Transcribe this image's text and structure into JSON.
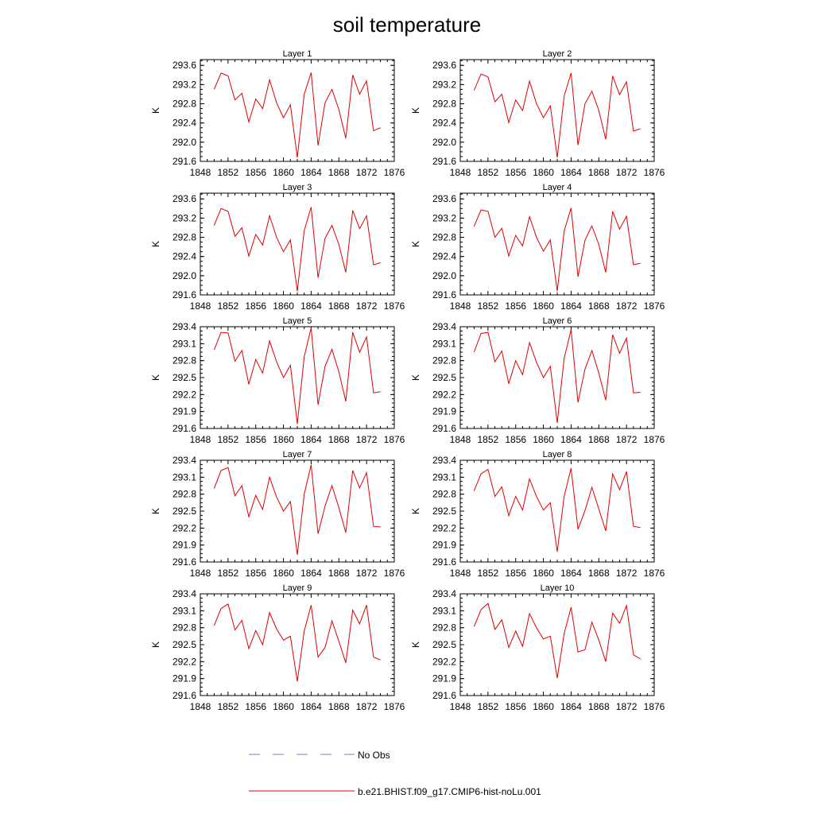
{
  "figure": {
    "title": "soil temperature",
    "legend": [
      {
        "label": "No Obs",
        "color": "#6a7fd0",
        "style": "dashed"
      },
      {
        "label": "b.e21.BHIST.f09_g17.CMIP6-hist-noLu.001",
        "color": "#e00000",
        "style": "solid"
      }
    ]
  },
  "chart_data": [
    {
      "type": "line",
      "title": "Layer 1",
      "ylabel": "K",
      "xlim": [
        1848,
        1876
      ],
      "ylim": [
        291.6,
        293.72
      ],
      "xticks": [
        "1848",
        "1852",
        "1856",
        "1860",
        "1864",
        "1868",
        "1872",
        "1876"
      ],
      "yticks": [
        "291.6",
        "292.0",
        "292.4",
        "292.8",
        "293.2",
        "293.6"
      ],
      "series": [
        {
          "color": "#e00000",
          "x": [
            1850,
            1851,
            1852,
            1853,
            1854,
            1855,
            1856,
            1857,
            1858,
            1859,
            1860,
            1861,
            1862,
            1863,
            1864,
            1865,
            1866,
            1867,
            1868,
            1869,
            1870,
            1871,
            1872,
            1873,
            1874
          ],
          "values": [
            293.1,
            293.44,
            293.38,
            292.88,
            293.02,
            292.42,
            292.9,
            292.7,
            293.3,
            292.82,
            292.51,
            292.78,
            291.68,
            293.0,
            293.45,
            291.93,
            292.82,
            293.1,
            292.68,
            292.08,
            293.4,
            293.0,
            293.28,
            292.24,
            292.3
          ]
        }
      ]
    },
    {
      "type": "line",
      "title": "Layer 2",
      "ylabel": "K",
      "xlim": [
        1848,
        1876
      ],
      "ylim": [
        291.6,
        293.72
      ],
      "xticks": [
        "1848",
        "1852",
        "1856",
        "1860",
        "1864",
        "1868",
        "1872",
        "1876"
      ],
      "yticks": [
        "291.6",
        "292.0",
        "292.4",
        "292.8",
        "293.2",
        "293.6"
      ],
      "series": [
        {
          "color": "#e00000",
          "x": [
            1850,
            1851,
            1852,
            1853,
            1854,
            1855,
            1856,
            1857,
            1858,
            1859,
            1860,
            1861,
            1862,
            1863,
            1864,
            1865,
            1866,
            1867,
            1868,
            1869,
            1870,
            1871,
            1872,
            1873,
            1874
          ],
          "values": [
            293.08,
            293.42,
            293.36,
            292.84,
            293.0,
            292.41,
            292.88,
            292.66,
            293.27,
            292.8,
            292.51,
            292.76,
            291.68,
            292.96,
            293.44,
            291.94,
            292.8,
            293.06,
            292.66,
            292.06,
            293.38,
            292.99,
            293.26,
            292.23,
            292.28
          ]
        }
      ]
    },
    {
      "type": "line",
      "title": "Layer 3",
      "ylabel": "K",
      "xlim": [
        1848,
        1876
      ],
      "ylim": [
        291.6,
        293.72
      ],
      "xticks": [
        "1848",
        "1852",
        "1856",
        "1860",
        "1864",
        "1868",
        "1872",
        "1876"
      ],
      "yticks": [
        "291.6",
        "292.0",
        "292.4",
        "292.8",
        "293.2",
        "293.6"
      ],
      "series": [
        {
          "color": "#e00000",
          "x": [
            1850,
            1851,
            1852,
            1853,
            1854,
            1855,
            1856,
            1857,
            1858,
            1859,
            1860,
            1861,
            1862,
            1863,
            1864,
            1865,
            1866,
            1867,
            1868,
            1869,
            1870,
            1871,
            1872,
            1873,
            1874
          ],
          "values": [
            293.05,
            293.4,
            293.34,
            292.82,
            293.0,
            292.41,
            292.86,
            292.64,
            293.25,
            292.8,
            292.5,
            292.75,
            291.68,
            292.94,
            293.43,
            291.96,
            292.78,
            293.05,
            292.65,
            292.07,
            293.36,
            292.98,
            293.25,
            292.23,
            292.27
          ]
        }
      ]
    },
    {
      "type": "line",
      "title": "Layer 4",
      "ylabel": "K",
      "xlim": [
        1848,
        1876
      ],
      "ylim": [
        291.6,
        293.72
      ],
      "xticks": [
        "1848",
        "1852",
        "1856",
        "1860",
        "1864",
        "1868",
        "1872",
        "1876"
      ],
      "yticks": [
        "291.6",
        "292.0",
        "292.4",
        "292.8",
        "293.2",
        "293.6"
      ],
      "series": [
        {
          "color": "#e00000",
          "x": [
            1850,
            1851,
            1852,
            1853,
            1854,
            1855,
            1856,
            1857,
            1858,
            1859,
            1860,
            1861,
            1862,
            1863,
            1864,
            1865,
            1866,
            1867,
            1868,
            1869,
            1870,
            1871,
            1872,
            1873,
            1874
          ],
          "values": [
            293.03,
            293.37,
            293.34,
            292.8,
            292.99,
            292.41,
            292.84,
            292.62,
            293.23,
            292.8,
            292.51,
            292.75,
            291.68,
            292.93,
            293.41,
            291.98,
            292.74,
            293.04,
            292.65,
            292.07,
            293.34,
            292.97,
            293.24,
            292.23,
            292.26
          ]
        }
      ]
    },
    {
      "type": "line",
      "title": "Layer 5",
      "ylabel": "K",
      "xlim": [
        1848,
        1876
      ],
      "ylim": [
        291.6,
        293.4
      ],
      "xticks": [
        "1848",
        "1852",
        "1856",
        "1860",
        "1864",
        "1868",
        "1872",
        "1876"
      ],
      "yticks": [
        "291.6",
        "291.9",
        "292.2",
        "292.5",
        "292.8",
        "293.1",
        "293.4"
      ],
      "series": [
        {
          "color": "#e00000",
          "x": [
            1850,
            1851,
            1852,
            1853,
            1854,
            1855,
            1856,
            1857,
            1858,
            1859,
            1860,
            1861,
            1862,
            1863,
            1864,
            1865,
            1866,
            1867,
            1868,
            1869,
            1870,
            1871,
            1872,
            1873,
            1874
          ],
          "values": [
            292.99,
            293.3,
            293.29,
            292.79,
            292.98,
            292.38,
            292.82,
            292.58,
            293.15,
            292.78,
            292.5,
            292.72,
            291.68,
            292.87,
            293.38,
            292.02,
            292.7,
            293.0,
            292.6,
            292.08,
            293.3,
            292.95,
            293.22,
            292.23,
            292.25
          ]
        }
      ]
    },
    {
      "type": "line",
      "title": "Layer 6",
      "ylabel": "K",
      "xlim": [
        1848,
        1876
      ],
      "ylim": [
        291.6,
        293.4
      ],
      "xticks": [
        "1848",
        "1852",
        "1856",
        "1860",
        "1864",
        "1868",
        "1872",
        "1876"
      ],
      "yticks": [
        "291.6",
        "291.9",
        "292.2",
        "292.5",
        "292.8",
        "293.1",
        "293.4"
      ],
      "series": [
        {
          "color": "#e00000",
          "x": [
            1850,
            1851,
            1852,
            1853,
            1854,
            1855,
            1856,
            1857,
            1858,
            1859,
            1860,
            1861,
            1862,
            1863,
            1864,
            1865,
            1866,
            1867,
            1868,
            1869,
            1870,
            1871,
            1872,
            1873,
            1874
          ],
          "values": [
            292.95,
            293.28,
            293.3,
            292.78,
            292.97,
            292.39,
            292.8,
            292.55,
            293.12,
            292.77,
            292.5,
            292.7,
            291.7,
            292.84,
            293.35,
            292.06,
            292.65,
            292.98,
            292.58,
            292.1,
            293.26,
            292.93,
            293.2,
            292.23,
            292.24
          ]
        }
      ]
    },
    {
      "type": "line",
      "title": "Layer 7",
      "ylabel": "K",
      "xlim": [
        1848,
        1876
      ],
      "ylim": [
        291.6,
        293.4
      ],
      "xticks": [
        "1848",
        "1852",
        "1856",
        "1860",
        "1864",
        "1868",
        "1872",
        "1876"
      ],
      "yticks": [
        "291.6",
        "291.9",
        "292.2",
        "292.5",
        "292.8",
        "293.1",
        "293.4"
      ],
      "series": [
        {
          "color": "#e00000",
          "x": [
            1850,
            1851,
            1852,
            1853,
            1854,
            1855,
            1856,
            1857,
            1858,
            1859,
            1860,
            1861,
            1862,
            1863,
            1864,
            1865,
            1866,
            1867,
            1868,
            1869,
            1870,
            1871,
            1872,
            1873,
            1874
          ],
          "values": [
            292.9,
            293.22,
            293.27,
            292.77,
            292.95,
            292.4,
            292.78,
            292.53,
            293.1,
            292.75,
            292.5,
            292.67,
            291.73,
            292.8,
            293.32,
            292.1,
            292.59,
            292.95,
            292.56,
            292.12,
            293.22,
            292.91,
            293.18,
            292.23,
            292.22
          ]
        }
      ]
    },
    {
      "type": "line",
      "title": "Layer 8",
      "ylabel": "K",
      "xlim": [
        1848,
        1876
      ],
      "ylim": [
        291.6,
        293.4
      ],
      "xticks": [
        "1848",
        "1852",
        "1856",
        "1860",
        "1864",
        "1868",
        "1872",
        "1876"
      ],
      "yticks": [
        "291.6",
        "291.9",
        "292.2",
        "292.5",
        "292.8",
        "293.1",
        "293.4"
      ],
      "series": [
        {
          "color": "#e00000",
          "x": [
            1850,
            1851,
            1852,
            1853,
            1854,
            1855,
            1856,
            1857,
            1858,
            1859,
            1860,
            1861,
            1862,
            1863,
            1864,
            1865,
            1866,
            1867,
            1868,
            1869,
            1870,
            1871,
            1872,
            1873,
            1874
          ],
          "values": [
            292.86,
            293.16,
            293.24,
            292.76,
            292.93,
            292.42,
            292.76,
            292.52,
            293.07,
            292.76,
            292.52,
            292.65,
            291.78,
            292.76,
            293.26,
            292.18,
            292.51,
            292.92,
            292.54,
            292.15,
            293.16,
            292.88,
            293.2,
            292.23,
            292.21
          ]
        }
      ]
    },
    {
      "type": "line",
      "title": "Layer 9",
      "ylabel": "K",
      "xlim": [
        1848,
        1876
      ],
      "ylim": [
        291.6,
        293.4
      ],
      "xticks": [
        "1848",
        "1852",
        "1856",
        "1860",
        "1864",
        "1868",
        "1872",
        "1876"
      ],
      "yticks": [
        "291.6",
        "291.9",
        "292.2",
        "292.5",
        "292.8",
        "293.1",
        "293.4"
      ],
      "series": [
        {
          "color": "#e00000",
          "x": [
            1850,
            1851,
            1852,
            1853,
            1854,
            1855,
            1856,
            1857,
            1858,
            1859,
            1860,
            1861,
            1862,
            1863,
            1864,
            1865,
            1866,
            1867,
            1868,
            1869,
            1870,
            1871,
            1872,
            1873,
            1874
          ],
          "values": [
            292.84,
            293.14,
            293.22,
            292.76,
            292.93,
            292.43,
            292.75,
            292.5,
            293.07,
            292.78,
            292.58,
            292.65,
            291.85,
            292.74,
            293.2,
            292.28,
            292.45,
            292.92,
            292.56,
            292.18,
            293.11,
            292.87,
            293.2,
            292.28,
            292.23
          ]
        }
      ]
    },
    {
      "type": "line",
      "title": "Layer 10",
      "ylabel": "K",
      "xlim": [
        1848,
        1876
      ],
      "ylim": [
        291.6,
        293.4
      ],
      "xticks": [
        "1848",
        "1852",
        "1856",
        "1860",
        "1864",
        "1868",
        "1872",
        "1876"
      ],
      "yticks": [
        "291.6",
        "291.9",
        "292.2",
        "292.5",
        "292.8",
        "293.1",
        "293.4"
      ],
      "series": [
        {
          "color": "#e00000",
          "x": [
            1850,
            1851,
            1852,
            1853,
            1854,
            1855,
            1856,
            1857,
            1858,
            1859,
            1860,
            1861,
            1862,
            1863,
            1864,
            1865,
            1866,
            1867,
            1868,
            1869,
            1870,
            1871,
            1872,
            1873,
            1874
          ],
          "values": [
            292.82,
            293.12,
            293.23,
            292.77,
            292.94,
            292.45,
            292.74,
            292.47,
            293.05,
            292.8,
            292.6,
            292.65,
            291.91,
            292.7,
            293.16,
            292.37,
            292.41,
            292.9,
            292.58,
            292.2,
            293.06,
            292.88,
            293.19,
            292.32,
            292.25
          ]
        }
      ]
    }
  ]
}
